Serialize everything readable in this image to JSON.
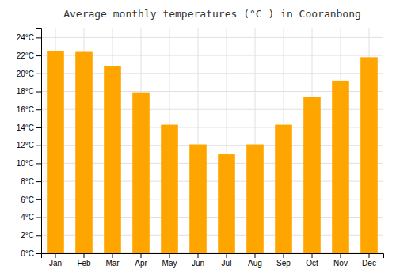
{
  "chart_data": {
    "type": "bar",
    "title": "Average monthly temperatures (°C ) in Cooranbong",
    "categories": [
      "Jan",
      "Feb",
      "Mar",
      "Apr",
      "May",
      "Jun",
      "Jul",
      "Aug",
      "Sep",
      "Oct",
      "Nov",
      "Dec"
    ],
    "values": [
      22.5,
      22.4,
      20.8,
      17.9,
      14.3,
      12.1,
      11.0,
      12.1,
      14.3,
      17.4,
      19.2,
      21.8
    ],
    "color": "#FFA500",
    "ylim": [
      0,
      25
    ],
    "yticks": [
      {
        "value": 0,
        "label": "0°C"
      },
      {
        "value": 2,
        "label": "2°C"
      },
      {
        "value": 4,
        "label": "4°C"
      },
      {
        "value": 6,
        "label": "6°C"
      },
      {
        "value": 8,
        "label": "8°C"
      },
      {
        "value": 10,
        "label": "10°C"
      },
      {
        "value": 12,
        "label": "12°C"
      },
      {
        "value": 14,
        "label": "14°C"
      },
      {
        "value": 16,
        "label": "16°C"
      },
      {
        "value": 18,
        "label": "18°C"
      },
      {
        "value": 20,
        "label": "20°C"
      },
      {
        "value": 22,
        "label": "22°C"
      },
      {
        "value": 24,
        "label": "24°C"
      }
    ],
    "grid": true
  }
}
